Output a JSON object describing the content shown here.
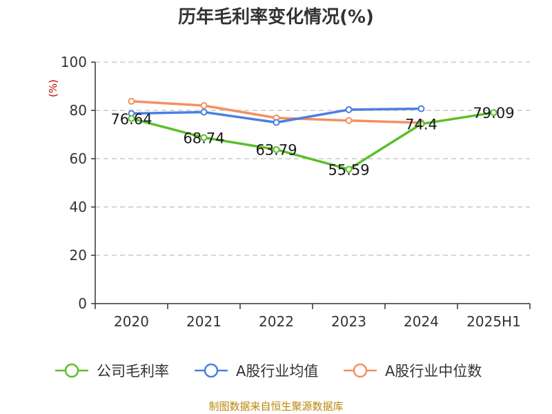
{
  "chart_data": {
    "type": "line",
    "title": "历年毛利率变化情况(%)",
    "ylabel": "(%)",
    "xlabel": "",
    "categories": [
      "2020",
      "2021",
      "2022",
      "2023",
      "2024",
      "2025H1"
    ],
    "ylim": [
      0,
      100
    ],
    "yticks": [
      0,
      20,
      40,
      60,
      80,
      100
    ],
    "grid": true,
    "legend_position": "bottom",
    "series": [
      {
        "name": "公司毛利率",
        "color": "#5cbf2a",
        "values": [
          76.64,
          68.74,
          63.79,
          55.59,
          74.4,
          79.09
        ],
        "data_labels": [
          "76.64",
          "68.74",
          "63.79",
          "55.59",
          "74.4",
          "79.09"
        ]
      },
      {
        "name": "A股行业均值",
        "color": "#4a7fe0",
        "values": [
          78.7,
          79.3,
          75.0,
          80.3,
          80.7,
          null
        ]
      },
      {
        "name": "A股行业中位数",
        "color": "#f49060",
        "values": [
          83.8,
          82.0,
          76.9,
          75.8,
          74.9,
          null
        ]
      }
    ]
  },
  "footer": {
    "source": "制图数据来自恒生聚源数据库"
  }
}
